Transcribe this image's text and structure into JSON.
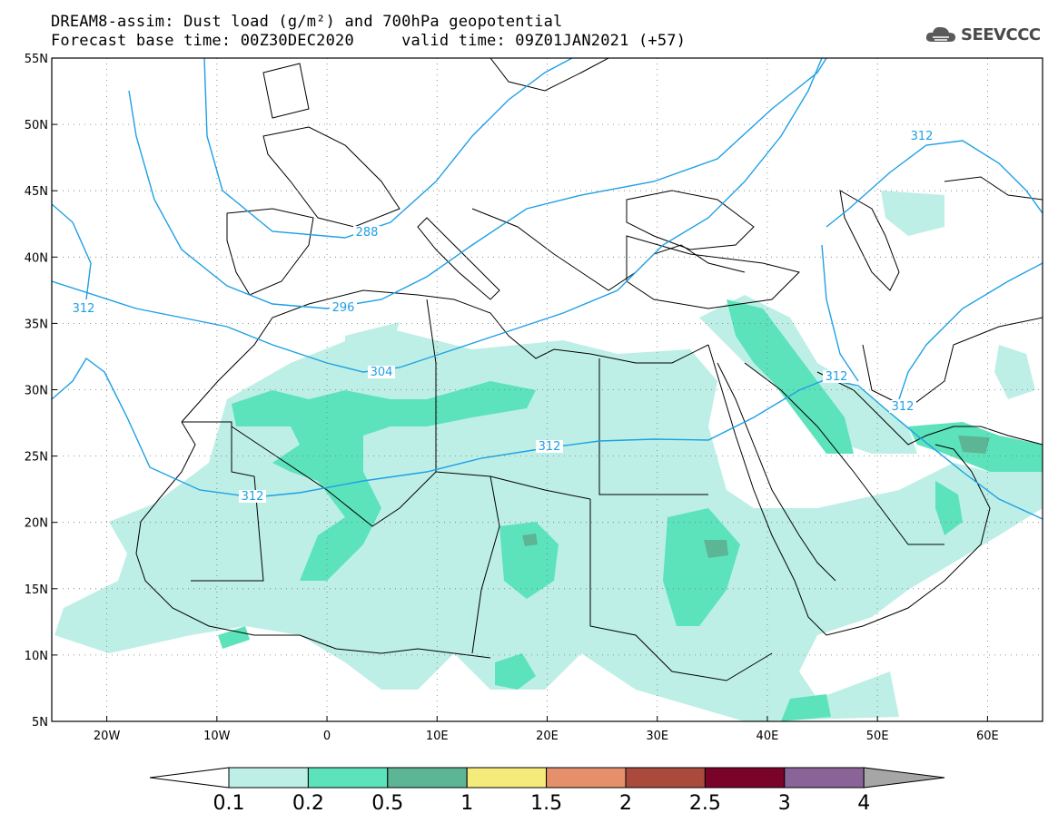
{
  "header": {
    "line1": "DREAM8-assim: Dust load (g/m²) and 700hPa geopotential",
    "line2": "Forecast base time: 00Z30DEC2020     valid time: 09Z01JAN2021 (+57)"
  },
  "logo": {
    "text": "SEEVCCC",
    "icon": "cloud-logo-icon"
  },
  "map": {
    "lon_range": [
      -25,
      65
    ],
    "lat_range": [
      5,
      55
    ],
    "lat_labels": [
      "55N",
      "50N",
      "45N",
      "40N",
      "35N",
      "30N",
      "25N",
      "20N",
      "15N",
      "10N",
      "5N"
    ],
    "lon_labels": [
      "20W",
      "10W",
      "0",
      "10E",
      "20E",
      "30E",
      "40E",
      "50E",
      "60E"
    ],
    "grid": true
  },
  "contour_labels": [
    "288",
    "296",
    "304",
    "312",
    "312",
    "312",
    "312",
    "312",
    "312"
  ],
  "colorbar": {
    "ticks": [
      "0.1",
      "0.2",
      "0.5",
      "1",
      "1.5",
      "2",
      "2.5",
      "3",
      "4"
    ],
    "colors": [
      "#ffffff",
      "#bdefe6",
      "#5ce3bb",
      "#5cb594",
      "#f5eb7b",
      "#e5906a",
      "#a94a3c",
      "#7a0429",
      "#8a6498",
      "#a6a6a6"
    ]
  }
}
